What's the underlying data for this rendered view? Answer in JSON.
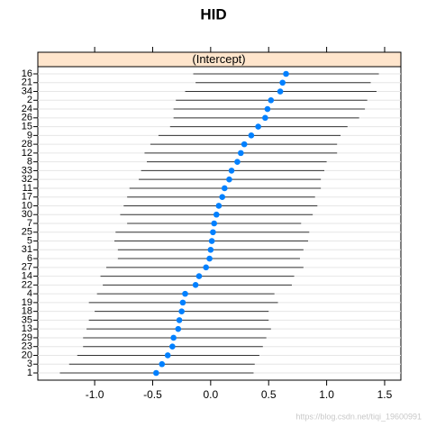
{
  "chart_data": {
    "type": "dotplot",
    "title": "HID",
    "strip": "(Intercept)",
    "categories": [
      "16",
      "21",
      "34",
      "2",
      "24",
      "26",
      "15",
      "9",
      "28",
      "12",
      "8",
      "33",
      "32",
      "11",
      "17",
      "10",
      "30",
      "7",
      "25",
      "5",
      "31",
      "6",
      "27",
      "14",
      "22",
      "4",
      "19",
      "18",
      "35",
      "13",
      "29",
      "23",
      "20",
      "3",
      "1"
    ],
    "values": [
      0.65,
      0.62,
      0.6,
      0.52,
      0.49,
      0.47,
      0.41,
      0.35,
      0.29,
      0.26,
      0.23,
      0.18,
      0.16,
      0.12,
      0.1,
      0.07,
      0.05,
      0.03,
      0.02,
      0.01,
      0.0,
      -0.01,
      -0.04,
      -0.1,
      -0.13,
      -0.22,
      -0.24,
      -0.25,
      -0.27,
      -0.28,
      -0.32,
      -0.33,
      -0.37,
      -0.42,
      -0.47
    ],
    "lower": [
      -0.15,
      -0.13,
      -0.22,
      -0.3,
      -0.32,
      -0.32,
      -0.35,
      -0.45,
      -0.52,
      -0.57,
      -0.55,
      -0.6,
      -0.62,
      -0.7,
      -0.72,
      -0.75,
      -0.78,
      -0.72,
      -0.82,
      -0.83,
      -0.8,
      -0.8,
      -0.9,
      -0.95,
      -0.93,
      -0.98,
      -1.05,
      -1.0,
      -1.05,
      -1.07,
      -1.1,
      -1.1,
      -1.15,
      -1.22,
      -1.3
    ],
    "upper": [
      1.45,
      1.38,
      1.43,
      1.35,
      1.33,
      1.28,
      1.18,
      1.12,
      1.09,
      1.09,
      1.0,
      0.98,
      0.95,
      0.95,
      0.9,
      0.92,
      0.88,
      0.78,
      0.85,
      0.84,
      0.8,
      0.77,
      0.8,
      0.72,
      0.7,
      0.55,
      0.58,
      0.5,
      0.5,
      0.52,
      0.48,
      0.45,
      0.42,
      0.38,
      0.37
    ],
    "color": "#0080ff",
    "xlim": [
      -1.49,
      1.64
    ],
    "xticks": [
      {
        "value": -1.0,
        "label": "-1.0"
      },
      {
        "value": -0.5,
        "label": "-0.5"
      },
      {
        "value": 0.0,
        "label": "0.0"
      },
      {
        "value": 0.5,
        "label": "0.5"
      },
      {
        "value": 1.0,
        "label": "1.0"
      },
      {
        "value": 1.5,
        "label": "1.5"
      }
    ],
    "grid": true,
    "watermark": "https://blog.csdn.net/tiqi_19600991"
  }
}
